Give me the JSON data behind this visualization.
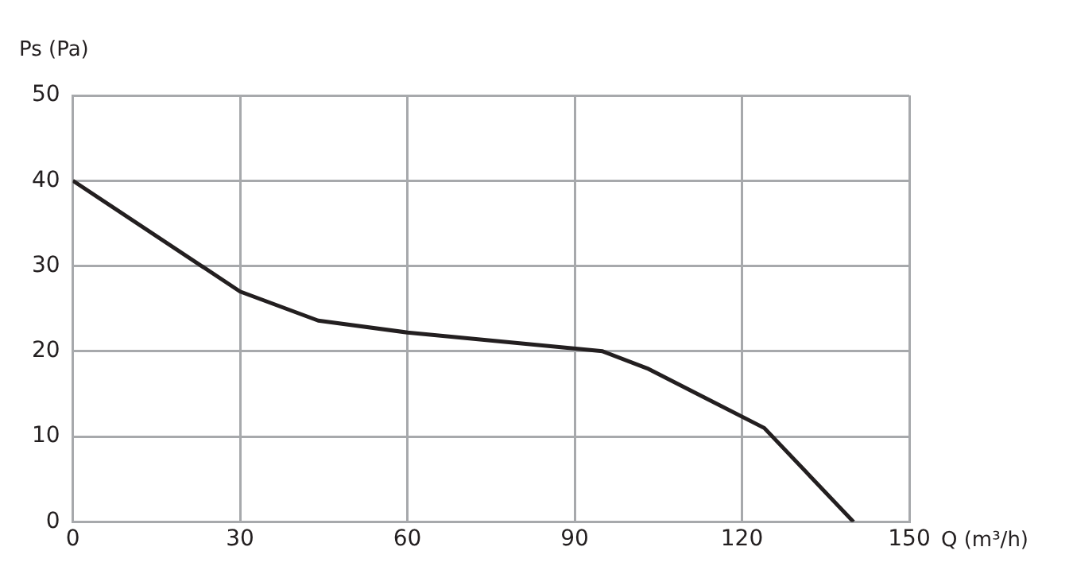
{
  "chart_data": {
    "type": "line",
    "xlabel": "Q (m³/h)",
    "ylabel": "Ps (Pa)",
    "x": [
      0,
      30,
      44,
      60,
      95,
      103,
      112,
      124,
      140
    ],
    "series": [
      {
        "color": "#231f20",
        "values": [
          40,
          27,
          23.6,
          22.2,
          20,
          18,
          15,
          11,
          0
        ]
      }
    ],
    "xlim": [
      0,
      150
    ],
    "xticks": [
      0,
      30,
      60,
      90,
      120,
      150
    ],
    "ylim": [
      0,
      50
    ],
    "yticks": [
      0,
      10,
      20,
      30,
      40,
      50
    ],
    "grid": true,
    "legend": false,
    "marker": "none",
    "line_style": "solid"
  }
}
